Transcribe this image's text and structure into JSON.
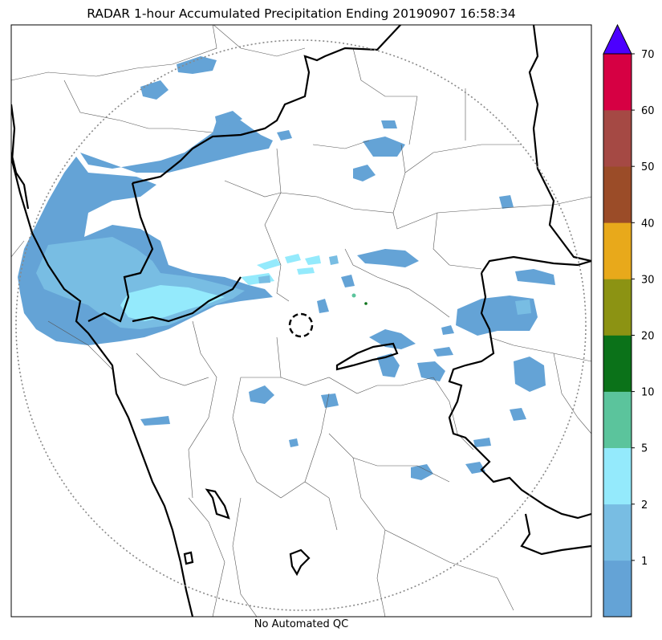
{
  "title": "RADAR 1-hour Accumulated Precipitation Ending 20190907 16:58:34",
  "footnote": "No Automated QC",
  "colorbar": {
    "tick_labels": [
      "1",
      "2",
      "5",
      "10",
      "20",
      "30",
      "40",
      "50",
      "60",
      "70"
    ],
    "bins": [
      {
        "label": "0-1",
        "color": "#64a3d6"
      },
      {
        "label": "1-2",
        "color": "#78bde3"
      },
      {
        "label": "2-5",
        "color": "#94eafc"
      },
      {
        "label": "5-10",
        "color": "#5bc49c"
      },
      {
        "label": "10-20",
        "color": "#0b7219"
      },
      {
        "label": "20-30",
        "color": "#8c9313"
      },
      {
        "label": "30-40",
        "color": "#e8a91b"
      },
      {
        "label": "40-50",
        "color": "#9b4c28"
      },
      {
        "label": "50-60",
        "color": "#a54944"
      },
      {
        "label": "60-70",
        "color": "#d60043"
      }
    ],
    "over_color": "#4c00ff"
  }
}
